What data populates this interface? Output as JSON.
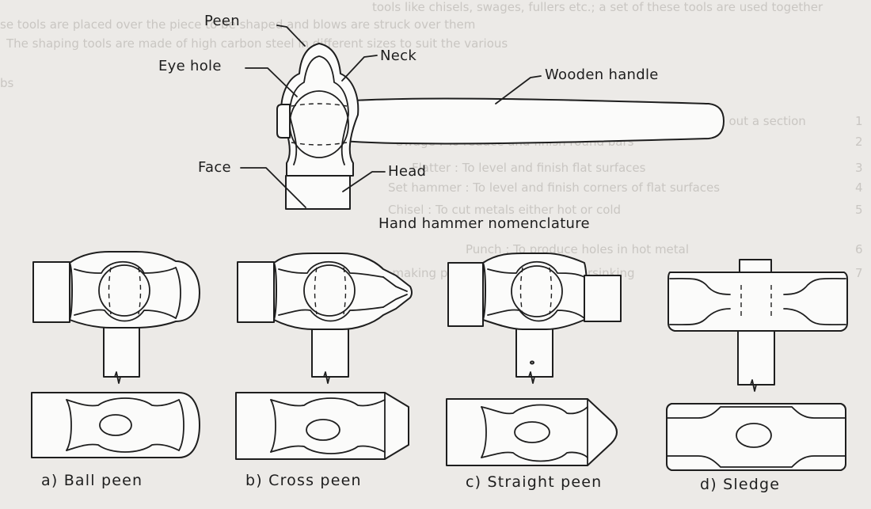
{
  "background_text": {
    "lines": [
      "tools like chisels, swages, fullers etc.; a set of these tools are used together",
      "se tools are placed over the piece to be shaped and blows are struck over them",
      "The shaping tools are made of high carbon steel in different sizes to suit the various",
      "bs",
      "Fuller : To make necks and drawing out a section",
      "Swage : To reduce and finish round bars",
      "Flatter : To level and finish flat surfaces",
      "Set hammer : To level and finish corners of flat surfaces",
      "Chisel : To cut metals either hot or cold",
      "Punch : To produce holes in hot metal",
      "for making punched holes or countersinking"
    ],
    "numbers": [
      "1",
      "2",
      "3",
      "4",
      "5",
      "6",
      "7"
    ]
  },
  "nomenclature": {
    "caption": "Hand hammer nomenclature",
    "labels": {
      "peen": "Peen",
      "eye_hole": "Eye hole",
      "neck": "Neck",
      "wooden_handle": "Wooden handle",
      "face": "Face",
      "head": "Head"
    }
  },
  "hammer_types": [
    {
      "id": "ball-peen",
      "caption": "a)  Ball peen"
    },
    {
      "id": "cross-peen",
      "caption": "b)  Cross peen"
    },
    {
      "id": "straight-peen",
      "caption": "c)  Straight peen"
    },
    {
      "id": "sledge",
      "caption": "d)  Sledge"
    }
  ],
  "colors": {
    "paper": "#eceae7",
    "ink": "#1e1e1e",
    "ghost_text": "#c9c6c2"
  }
}
